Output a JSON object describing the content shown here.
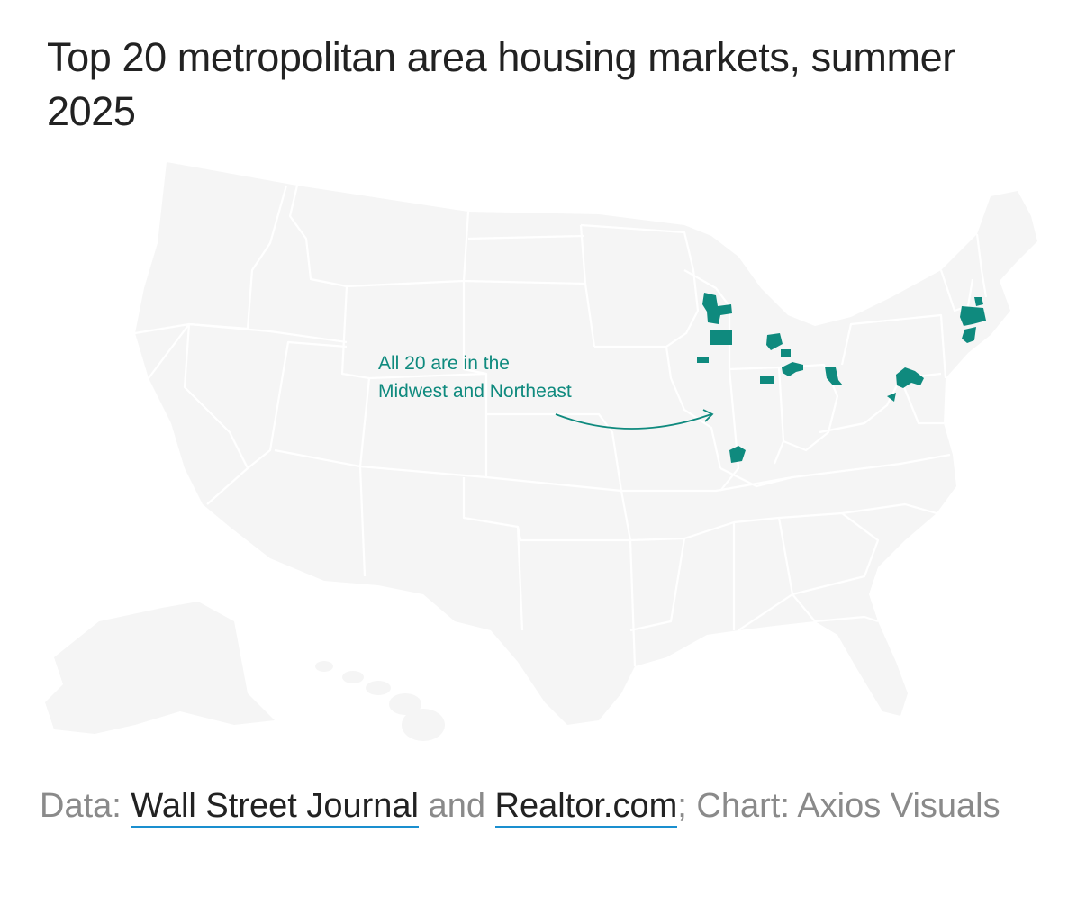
{
  "title": "Top 20 metropolitan area housing markets, summer 2025",
  "annotation": {
    "line1": "All 20 are in the",
    "line2": "Midwest and Northeast"
  },
  "footer": {
    "prefix": "Data: ",
    "source1": "Wall Street Journal",
    "joiner": " and ",
    "source2": "Realtor.com",
    "suffix": "; Chart: Axios Visuals"
  },
  "colors": {
    "land": "#f5f5f5",
    "border": "#ffffff",
    "highlight": "#0f8a7e",
    "title": "#222222",
    "footer": "#8a8a8a",
    "link_underline": "#1a8fcf"
  }
}
